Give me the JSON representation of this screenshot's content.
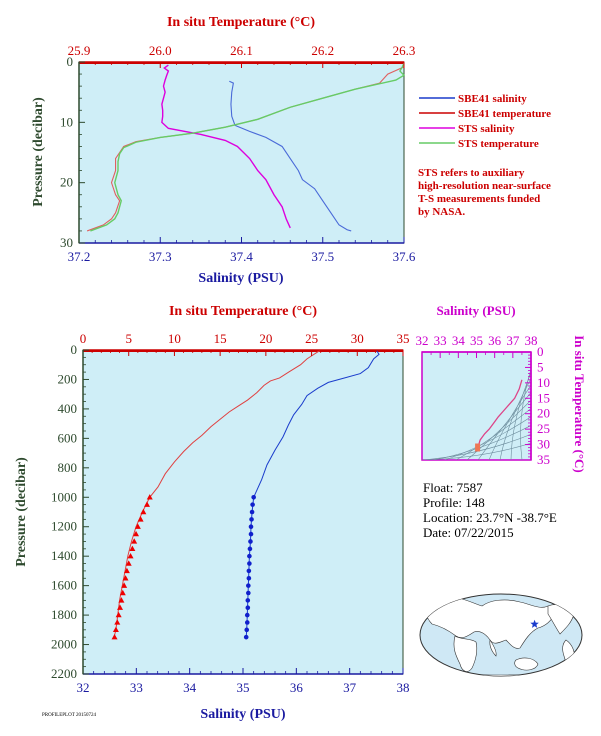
{
  "chart_data": [
    {
      "type": "line",
      "id": "top_profile",
      "title": "",
      "x_bottom": {
        "label": "Salinity (PSU)",
        "range": [
          37.2,
          37.6
        ],
        "ticks": [
          "37.2",
          "37.3",
          "37.4",
          "37.5",
          "37.6"
        ]
      },
      "x_top": {
        "label": "In situ Temperature (°C)",
        "range": [
          25.9,
          26.3
        ],
        "ticks": [
          "25.9",
          "26.0",
          "26.1",
          "26.2",
          "26.3"
        ]
      },
      "y": {
        "label": "Pressure (decibar)",
        "range": [
          0,
          30
        ],
        "inverted": true,
        "ticks": [
          "0",
          "10",
          "20",
          "30"
        ]
      },
      "legend": {
        "placement": "right",
        "items": [
          {
            "name": "SBE41 salinity",
            "color": "#1a3ccc"
          },
          {
            "name": "SBE41 temperature",
            "color": "#cc0000"
          },
          {
            "name": "STS salinity",
            "color": "#dd00dd"
          },
          {
            "name": "STS temperature",
            "color": "#66cc66"
          }
        ]
      },
      "note": [
        "STS refers to auxiliary",
        "high-resolution near-surface",
        "T-S measurements funded",
        "by NASA."
      ],
      "series": [
        {
          "name": "SBE41 salinity",
          "axis": "salinity",
          "color": "#4a6ad8",
          "points": [
            [
              37.385,
              3.2
            ],
            [
              37.39,
              3.5
            ],
            [
              37.388,
              5
            ],
            [
              37.387,
              7
            ],
            [
              37.388,
              9
            ],
            [
              37.392,
              10.5
            ],
            [
              37.41,
              11.5
            ],
            [
              37.43,
              12.5
            ],
            [
              37.45,
              14
            ],
            [
              37.46,
              16
            ],
            [
              37.47,
              18
            ],
            [
              37.475,
              19.5
            ],
            [
              37.49,
              21
            ],
            [
              37.5,
              23
            ],
            [
              37.51,
              25
            ],
            [
              37.52,
              27
            ],
            [
              37.53,
              27.8
            ],
            [
              37.535,
              28
            ]
          ]
        },
        {
          "name": "SBE41 temperature",
          "axis": "temperature",
          "color": "#e06060",
          "points": [
            [
              26.3,
              0.8
            ],
            [
              26.28,
              2
            ],
            [
              26.27,
              3.5
            ],
            [
              26.24,
              4.5
            ],
            [
              26.2,
              6
            ],
            [
              26.16,
              7.5
            ],
            [
              26.12,
              9.5
            ],
            [
              26.08,
              10.8
            ],
            [
              26.04,
              11.8
            ],
            [
              26.0,
              12.5
            ],
            [
              25.97,
              13.2
            ],
            [
              25.955,
              14
            ],
            [
              25.95,
              15
            ],
            [
              25.945,
              16
            ],
            [
              25.945,
              18
            ],
            [
              25.94,
              20
            ],
            [
              25.945,
              22
            ],
            [
              25.95,
              23
            ],
            [
              25.945,
              25
            ],
            [
              25.94,
              26
            ],
            [
              25.93,
              27
            ],
            [
              25.91,
              28
            ]
          ]
        },
        {
          "name": "STS salinity",
          "axis": "salinity",
          "color": "#dd00dd",
          "points": [
            [
              37.31,
              0.5
            ],
            [
              37.305,
              1
            ],
            [
              37.31,
              1.5
            ],
            [
              37.308,
              2.2
            ],
            [
              37.306,
              3
            ],
            [
              37.304,
              4
            ],
            [
              37.306,
              5
            ],
            [
              37.304,
              6
            ],
            [
              37.302,
              7
            ],
            [
              37.303,
              8
            ],
            [
              37.303,
              9
            ],
            [
              37.302,
              10
            ],
            [
              37.31,
              11
            ],
            [
              37.35,
              12
            ],
            [
              37.38,
              13
            ],
            [
              37.395,
              14
            ],
            [
              37.41,
              16
            ],
            [
              37.42,
              18
            ],
            [
              37.43,
              19.5
            ],
            [
              37.44,
              22
            ],
            [
              37.45,
              24
            ],
            [
              37.455,
              26
            ],
            [
              37.46,
              27.5
            ]
          ]
        },
        {
          "name": "STS temperature",
          "axis": "temperature",
          "color": "#66cc66",
          "points": [
            [
              26.3,
              0.2
            ],
            [
              26.298,
              0.8
            ],
            [
              26.295,
              1.5
            ],
            [
              26.3,
              2.2
            ],
            [
              26.29,
              3
            ],
            [
              26.27,
              3.6
            ],
            [
              26.24,
              4.5
            ],
            [
              26.2,
              6
            ],
            [
              26.16,
              7.5
            ],
            [
              26.12,
              9.5
            ],
            [
              26.08,
              10.8
            ],
            [
              26.04,
              11.8
            ],
            [
              26.0,
              12.5
            ],
            [
              25.97,
              13.3
            ],
            [
              25.955,
              14.2
            ],
            [
              25.95,
              15.2
            ],
            [
              25.948,
              16.5
            ],
            [
              25.948,
              18
            ],
            [
              25.944,
              20
            ],
            [
              25.948,
              22
            ],
            [
              25.952,
              23
            ],
            [
              25.948,
              25
            ],
            [
              25.944,
              26
            ],
            [
              25.934,
              27
            ],
            [
              25.914,
              28
            ]
          ]
        }
      ]
    },
    {
      "type": "line",
      "id": "deep_profile",
      "title": "",
      "x_bottom": {
        "label": "Salinity (PSU)",
        "range": [
          32,
          38
        ],
        "ticks": [
          "32",
          "33",
          "34",
          "35",
          "36",
          "37",
          "38"
        ]
      },
      "x_top": {
        "label": "In situ Temperature (°C)",
        "range": [
          0,
          35
        ],
        "ticks": [
          "0",
          "5",
          "10",
          "15",
          "20",
          "25",
          "30",
          "35"
        ]
      },
      "y": {
        "label": "Pressure (decibar)",
        "range": [
          0,
          2200
        ],
        "inverted": true,
        "ticks": [
          "0",
          "200",
          "400",
          "600",
          "800",
          "1000",
          "1200",
          "1400",
          "1600",
          "1800",
          "2000",
          "2200"
        ]
      },
      "series": [
        {
          "name": "temperature",
          "axis": "temperature",
          "color": "#e04040",
          "points": [
            [
              26.0,
              0
            ],
            [
              25.5,
              20
            ],
            [
              25.0,
              40
            ],
            [
              24.5,
              60
            ],
            [
              23.8,
              100
            ],
            [
              22.5,
              150
            ],
            [
              21.5,
              190
            ],
            [
              20.5,
              210
            ],
            [
              19.8,
              240
            ],
            [
              19.0,
              290
            ],
            [
              18.0,
              340
            ],
            [
              17.0,
              380
            ],
            [
              16.0,
              420
            ],
            [
              15.0,
              470
            ],
            [
              14.0,
              520
            ],
            [
              13.0,
              580
            ],
            [
              12.0,
              630
            ],
            [
              11.0,
              690
            ],
            [
              10.0,
              760
            ],
            [
              9.0,
              840
            ],
            [
              8.2,
              930
            ],
            [
              7.3,
              1000
            ],
            [
              6.5,
              1100
            ],
            [
              5.8,
              1200
            ],
            [
              5.3,
              1300
            ],
            [
              4.9,
              1400
            ],
            [
              4.6,
              1500
            ],
            [
              4.3,
              1600
            ],
            [
              4.0,
              1700
            ],
            [
              3.8,
              1800
            ],
            [
              3.6,
              1900
            ],
            [
              3.4,
              1950
            ]
          ],
          "markers": {
            "shape": "triangle",
            "from": 1000,
            "points": [
              [
                7.3,
                1000
              ],
              [
                7.0,
                1050
              ],
              [
                6.6,
                1100
              ],
              [
                6.3,
                1150
              ],
              [
                6.0,
                1200
              ],
              [
                5.8,
                1250
              ],
              [
                5.6,
                1300
              ],
              [
                5.4,
                1350
              ],
              [
                5.2,
                1400
              ],
              [
                5.0,
                1450
              ],
              [
                4.8,
                1500
              ],
              [
                4.65,
                1550
              ],
              [
                4.5,
                1600
              ],
              [
                4.35,
                1650
              ],
              [
                4.2,
                1700
              ],
              [
                4.05,
                1750
              ],
              [
                3.9,
                1800
              ],
              [
                3.75,
                1850
              ],
              [
                3.6,
                1900
              ],
              [
                3.45,
                1950
              ]
            ]
          }
        },
        {
          "name": "salinity",
          "axis": "salinity",
          "color": "#1a3ccc",
          "points": [
            [
              37.5,
              0
            ],
            [
              37.55,
              30
            ],
            [
              37.45,
              60
            ],
            [
              37.35,
              120
            ],
            [
              37.2,
              160
            ],
            [
              36.9,
              190
            ],
            [
              36.6,
              220
            ],
            [
              36.4,
              260
            ],
            [
              36.2,
              310
            ],
            [
              36.1,
              370
            ],
            [
              35.95,
              440
            ],
            [
              35.85,
              510
            ],
            [
              35.75,
              590
            ],
            [
              35.6,
              680
            ],
            [
              35.45,
              780
            ],
            [
              35.35,
              880
            ],
            [
              35.2,
              1000
            ],
            [
              35.17,
              1100
            ],
            [
              35.15,
              1200
            ],
            [
              35.14,
              1300
            ],
            [
              35.12,
              1400
            ],
            [
              35.11,
              1500
            ],
            [
              35.1,
              1600
            ],
            [
              35.09,
              1700
            ],
            [
              35.08,
              1800
            ],
            [
              35.07,
              1900
            ],
            [
              35.06,
              1950
            ]
          ],
          "markers": {
            "shape": "circle",
            "from": 1000,
            "points": [
              [
                35.2,
                1000
              ],
              [
                35.18,
                1050
              ],
              [
                35.17,
                1100
              ],
              [
                35.16,
                1150
              ],
              [
                35.15,
                1200
              ],
              [
                35.15,
                1250
              ],
              [
                35.14,
                1300
              ],
              [
                35.13,
                1350
              ],
              [
                35.12,
                1400
              ],
              [
                35.12,
                1450
              ],
              [
                35.11,
                1500
              ],
              [
                35.11,
                1550
              ],
              [
                35.1,
                1600
              ],
              [
                35.1,
                1650
              ],
              [
                35.09,
                1700
              ],
              [
                35.09,
                1750
              ],
              [
                35.08,
                1800
              ],
              [
                35.08,
                1850
              ],
              [
                35.07,
                1900
              ],
              [
                35.06,
                1950
              ]
            ]
          }
        }
      ]
    },
    {
      "type": "scatter",
      "id": "ts_diagram",
      "title": "",
      "x_top": {
        "label": "Salinity (PSU)",
        "range": [
          32,
          38
        ],
        "ticks": [
          "32",
          "33",
          "34",
          "35",
          "36",
          "37",
          "38"
        ]
      },
      "y_right": {
        "label": "In situ Temperature (°C)",
        "range": [
          0,
          35
        ],
        "ticks": [
          "0",
          "5",
          "10",
          "15",
          "20",
          "25",
          "30",
          "35"
        ]
      },
      "series": [
        {
          "name": "profile",
          "color": "#dd4488",
          "points": [
            [
              37.5,
              26
            ],
            [
              37.35,
              23
            ],
            [
              37.1,
              20
            ],
            [
              36.8,
              18
            ],
            [
              36.5,
              16
            ],
            [
              36.2,
              14
            ],
            [
              35.95,
              12
            ],
            [
              35.7,
              10
            ],
            [
              35.45,
              8.5
            ],
            [
              35.3,
              7.3
            ],
            [
              35.2,
              6.5
            ],
            [
              35.15,
              5.5
            ],
            [
              35.12,
              4.8
            ],
            [
              35.1,
              4.2
            ],
            [
              35.08,
              3.8
            ],
            [
              35.06,
              3.4
            ]
          ]
        }
      ]
    }
  ],
  "info": {
    "float": "Float: 7587",
    "profile": "Profile:  148",
    "location": "Location:  23.7°N  -38.7°E",
    "date": "Date:  07/22/2015"
  },
  "map": {
    "marker_lat": 23.7,
    "marker_lon": -38.7,
    "marker_color": "#1a3ccc",
    "ocean_color": "#cfe8f5"
  },
  "footer": "PROFILEPLOT 20150724",
  "colors": {
    "plot_bg": "#cfeef7",
    "salinity_axis": "#1a1aa0",
    "temperature_axis": "#cc0000",
    "pressure_axis": "#2e4a2e",
    "ts_axis": "#cc00cc"
  }
}
